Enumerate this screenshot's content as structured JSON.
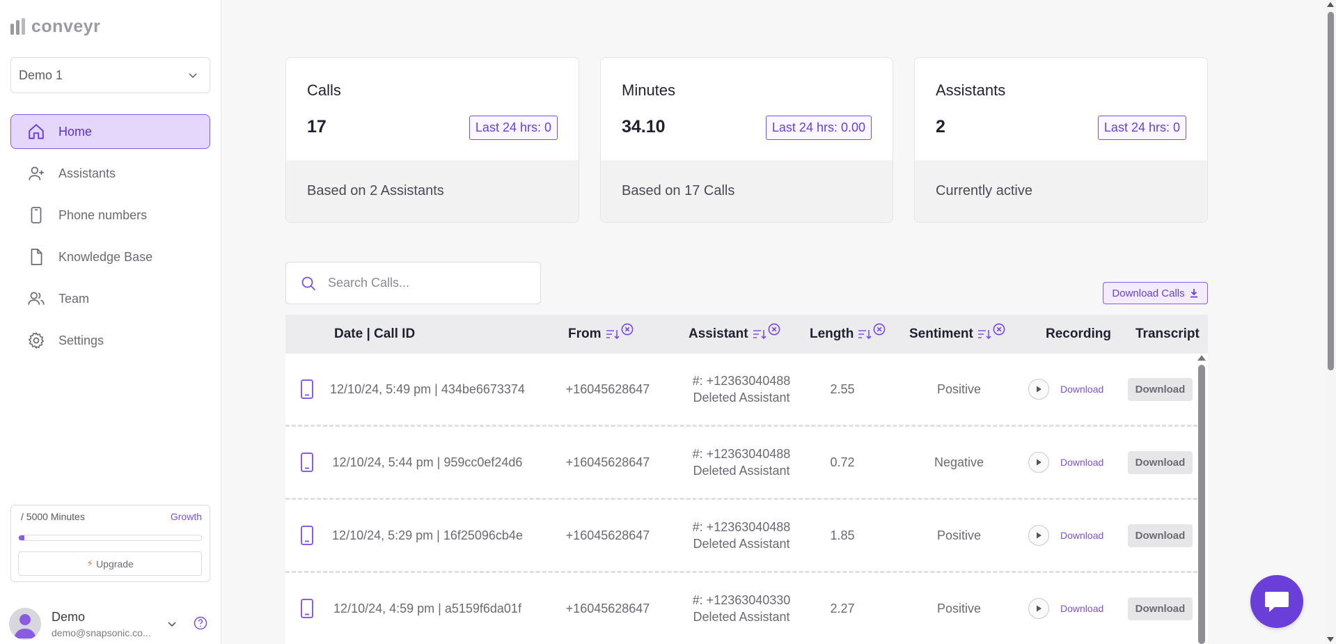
{
  "brand": {
    "name": "conveyr",
    "accent": "#7c4ee0"
  },
  "workspace": {
    "selected": "Demo 1"
  },
  "nav": [
    {
      "label": "Home",
      "icon": "home-icon",
      "active": true
    },
    {
      "label": "Assistants",
      "icon": "user-plus-icon",
      "active": false
    },
    {
      "label": "Phone numbers",
      "icon": "phone-icon",
      "active": false
    },
    {
      "label": "Knowledge Base",
      "icon": "document-icon",
      "active": false
    },
    {
      "label": "Team",
      "icon": "team-icon",
      "active": false
    },
    {
      "label": "Settings",
      "icon": "gear-icon",
      "active": false
    }
  ],
  "usage": {
    "minutes_label": "/ 5000 Minutes",
    "plan": "Growth",
    "progress_percent": 3,
    "upgrade_label": "Upgrade"
  },
  "user": {
    "name": "Demo",
    "email": "demo@snapsonic.co..."
  },
  "cards": [
    {
      "title": "Calls",
      "value": "17",
      "badge": "Last 24 hrs: 0",
      "footer": "Based on 2 Assistants"
    },
    {
      "title": "Minutes",
      "value": "34.10",
      "badge": "Last 24 hrs: 0.00",
      "footer": "Based on 17 Calls"
    },
    {
      "title": "Assistants",
      "value": "2",
      "badge": "Last 24 hrs: 0",
      "footer": "Currently active"
    }
  ],
  "search": {
    "placeholder": "Search Calls..."
  },
  "download_calls_label": "Download Calls",
  "table": {
    "headers": {
      "date": "Date | Call ID",
      "from": "From",
      "assistant": "Assistant",
      "length": "Length",
      "sentiment": "Sentiment",
      "recording": "Recording",
      "transcript": "Transcript"
    },
    "rows": [
      {
        "date": "12/10/24, 5:49 pm | 434be6673374",
        "from": "+16045628647",
        "assistant_number": "#: +12363040488",
        "assistant_name": "Deleted Assistant",
        "length": "2.55",
        "sentiment": "Positive",
        "recording_link": "Download",
        "transcript_button": "Download"
      },
      {
        "date": "12/10/24, 5:44 pm | 959cc0ef24d6",
        "from": "+16045628647",
        "assistant_number": "#: +12363040488",
        "assistant_name": "Deleted Assistant",
        "length": "0.72",
        "sentiment": "Negative",
        "recording_link": "Download",
        "transcript_button": "Download"
      },
      {
        "date": "12/10/24, 5:29 pm | 16f25096cb4e",
        "from": "+16045628647",
        "assistant_number": "#: +12363040488",
        "assistant_name": "Deleted Assistant",
        "length": "1.85",
        "sentiment": "Positive",
        "recording_link": "Download",
        "transcript_button": "Download"
      },
      {
        "date": "12/10/24, 4:59 pm | a5159f6da01f",
        "from": "+16045628647",
        "assistant_number": "#: +12363040330",
        "assistant_name": "Deleted Assistant",
        "length": "2.27",
        "sentiment": "Positive",
        "recording_link": "Download",
        "transcript_button": "Download"
      }
    ]
  }
}
